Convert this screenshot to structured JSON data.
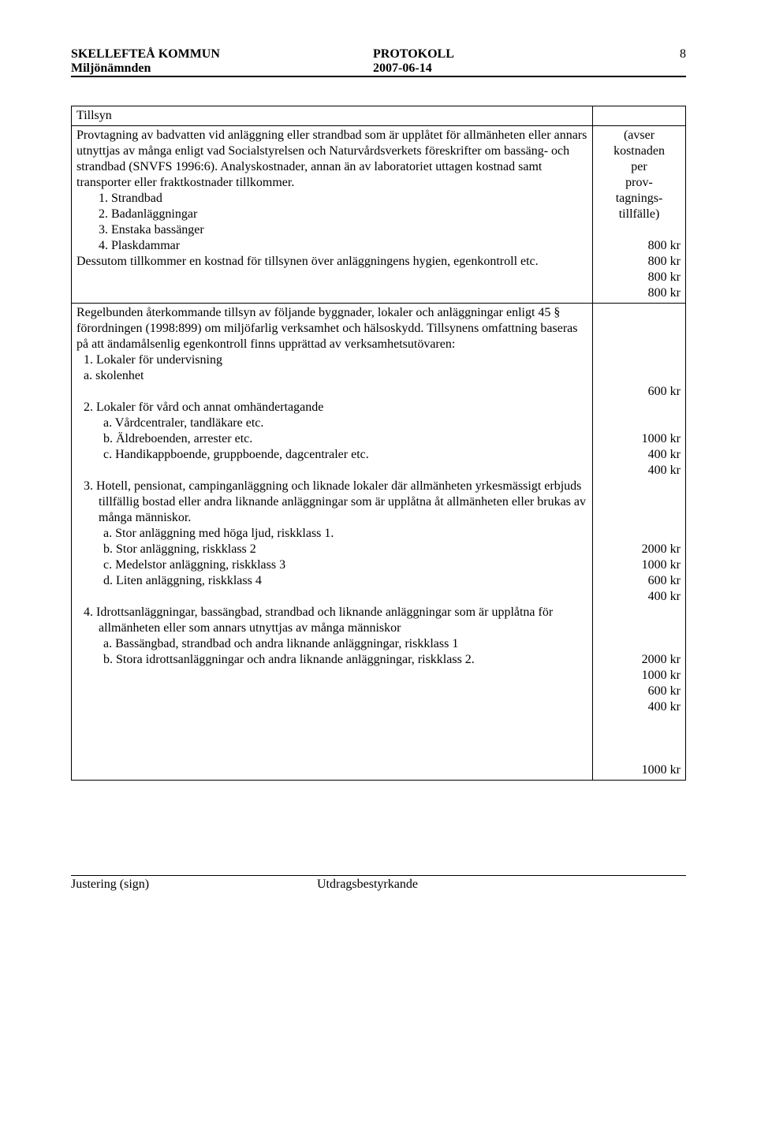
{
  "header": {
    "org": "SKELLEFTEÅ KOMMUN",
    "board": "Miljönämnden",
    "doctype": "PROTOKOLL",
    "date": "2007-06-14",
    "page": "8"
  },
  "table": {
    "row1": {
      "head": "Tillsyn"
    },
    "row2": {
      "para1": "Provtagning av badvatten vid anläggning eller strandbad som är upplåtet för allmänheten eller annars utnyttjas av många enligt vad Socialstyrelsen och Naturvårdsverkets föreskrifter om bassäng- och strandbad (SNVFS 1996:6). Analyskostnader, annan än av laboratoriet uttagen kostnad samt transporter eller fraktkostnader tillkommer.",
      "li1": "1. Strandbad",
      "li2": "2. Badanläggningar",
      "li3": "3. Enstaka bassänger",
      "li4": "4. Plaskdammar",
      "para2": "Dessutom tillkommer en kostnad för tillsynen över anläggningens hygien, egenkontroll etc.",
      "val_l1": "(avser",
      "val_l2": "kostnaden",
      "val_l3": "per",
      "val_l4": "prov-",
      "val_l5": "tagnings-",
      "val_l6": "tillfälle)",
      "val_blank": " ",
      "val_v1": "800 kr",
      "val_v2": "800 kr",
      "val_v3": "800 kr",
      "val_v4": "800 kr"
    },
    "row3": {
      "para1": "Regelbunden återkommande tillsyn av följande byggnader, lokaler och anläggningar enligt 45 § förordningen (1998:899) om miljöfarlig verksamhet och hälsoskydd. Tillsynens omfattning baseras på att ändamålsenlig egenkontroll finns upprättad av verksamhetsutövaren:",
      "li1": "1. Lokaler för undervisning",
      "li1a": "a. skolenhet",
      "val1": "600 kr",
      "li2": "2. Lokaler för vård och annat omhändertagande",
      "li2a": "a.   Vårdcentraler, tandläkare etc.",
      "li2b": "b.   Äldreboenden, arrester etc.",
      "li2c": "c.   Handikappboende, gruppboende, dagcentraler etc.",
      "val2": "1000 kr",
      "val2a": "400 kr",
      "val2b": "400 kr",
      "li3": "3. Hotell, pensionat, campinganläggning och liknade lokaler där allmänheten yrkesmässigt erbjuds tillfällig bostad eller andra liknande anläggningar som är upplåtna åt allmänheten eller brukas av många människor.",
      "li3a": "a.   Stor anläggning med höga ljud, riskklass 1.",
      "li3b": "b.    Stor anläggning, riskklass 2",
      "li3c": "c.   Medelstor anläggning, riskklass 3",
      "li3d": "d.   Liten anläggning, riskklass 4",
      "val3_1": "2000 kr",
      "val3_2": "1000 kr",
      "val3_3": "600 kr",
      "val3_4": "400 kr",
      "li4": "4. Idrottsanläggningar, bassängbad, strandbad och liknande anläggningar som är upplåtna för allmänheten eller som annars utnyttjas av många människor",
      "li4a": "a.   Bassängbad, strandbad och andra liknande anläggningar, riskklass 1",
      "li4b": "b.   Stora idrottsanläggningar och andra liknande anläggningar, riskklass 2.",
      "val4_1": "2000 kr",
      "val4_2": "1000 kr",
      "val4_3": "600 kr",
      "val4_4": "400 kr",
      "val4_5": "1000 kr"
    }
  },
  "footer": {
    "left": "Justering (sign)",
    "right": "Utdragsbestyrkande"
  }
}
